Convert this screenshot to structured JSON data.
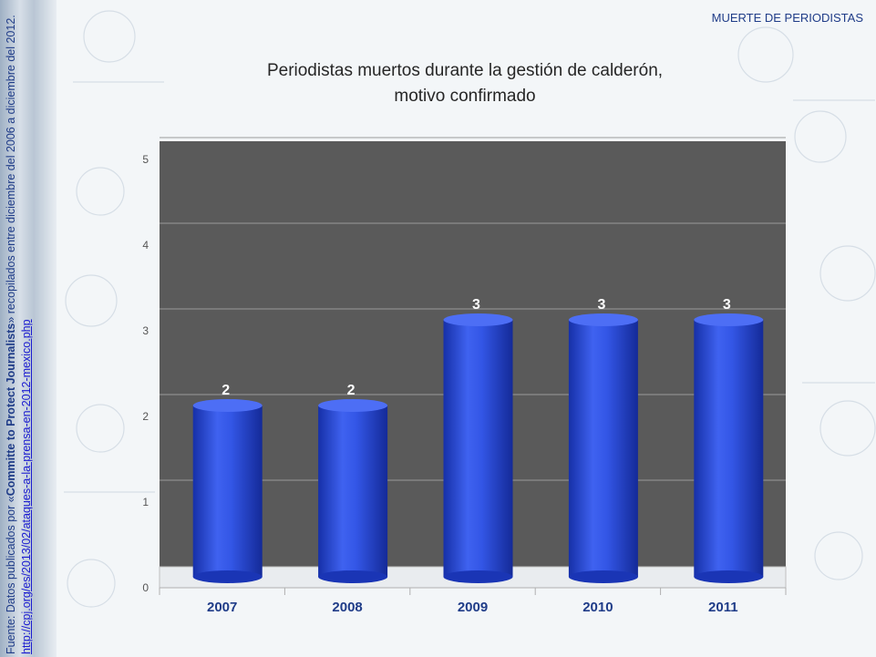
{
  "header": {
    "tag": "MUERTE DE PERIODISTAS"
  },
  "source": {
    "prefix": "Fuente: Datos publicados por «",
    "org": "Committe to Protect Journalists",
    "suffix": "» recopilados entre  diciembre del 2006 a diciembre del 2012.",
    "url": "http://cpj.org/es/2013/02/ataques-a-la-prensa-en-2012-mexico.php"
  },
  "colors": {
    "plot_bg": "#5a5a5a",
    "bar": "#2a48d8",
    "bar_label": "#ffffff",
    "category_label": "#1f3c88"
  },
  "chart_data": {
    "type": "bar",
    "title_line1": "Periodistas muertos durante la gestión de calderón,",
    "title_line2": "motivo confirmado",
    "categories": [
      "2007",
      "2008",
      "2009",
      "2010",
      "2011"
    ],
    "values": [
      2,
      2,
      3,
      3,
      3
    ],
    "data_labels": [
      "2",
      "2",
      "3",
      "3",
      "3"
    ],
    "yticks": [
      "0",
      "1",
      "2",
      "3",
      "4",
      "5"
    ],
    "ylim": [
      0,
      5
    ],
    "grid": true,
    "legend": "none",
    "style": "3d-cylinder"
  }
}
